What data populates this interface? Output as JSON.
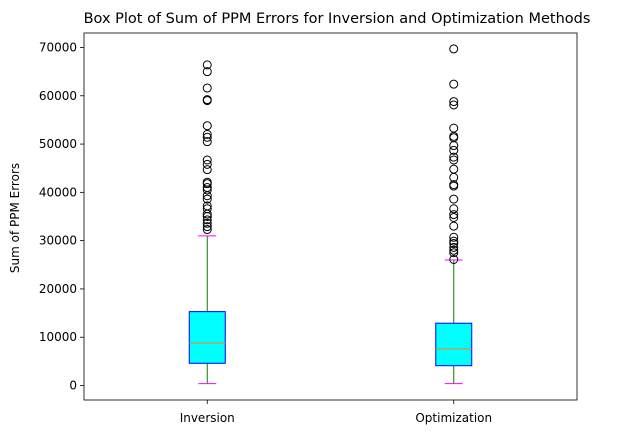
{
  "chart_data": {
    "type": "box",
    "title": "Box Plot of Sum of PPM Errors for Inversion and Optimization Methods",
    "xlabel": "",
    "ylabel": "Sum of PPM Errors",
    "categories": [
      "Inversion",
      "Optimization"
    ],
    "ylim": [
      -3000,
      73000
    ],
    "yticks": [
      0,
      10000,
      20000,
      30000,
      40000,
      50000,
      60000,
      70000
    ],
    "ytick_labels": [
      "0",
      "10000",
      "20000",
      "30000",
      "40000",
      "50000",
      "60000",
      "70000"
    ],
    "grid": false,
    "legend": "none",
    "colors": {
      "box_fill": "#00ffff",
      "box_edge": "#0000ff",
      "median": "#ff7f0e",
      "whisker": "#008000",
      "cap": "#ff00ff",
      "flier": "#000000",
      "axes": "#000000"
    },
    "boxes": [
      {
        "category": "Inversion",
        "whisker_low": 400,
        "q1": 4600,
        "median": 8800,
        "q3": 15300,
        "whisker_high": 31000,
        "outliers": [
          32300,
          32900,
          33600,
          34300,
          35000,
          35500,
          36600,
          37200,
          38600,
          39300,
          40500,
          41000,
          41800,
          42100,
          44700,
          45800,
          46700,
          50500,
          51400,
          52000,
          53800,
          59000,
          59200,
          61600,
          65000,
          66400
        ]
      },
      {
        "category": "Optimization",
        "whisker_low": 400,
        "q1": 4100,
        "median": 7600,
        "q3": 12900,
        "whisker_high": 26000,
        "outliers": [
          26100,
          27500,
          28000,
          28600,
          29400,
          29900,
          30700,
          33000,
          34800,
          35400,
          36600,
          38600,
          41300,
          41600,
          43100,
          44800,
          46700,
          47300,
          48700,
          49700,
          51300,
          51600,
          53300,
          58100,
          58800,
          62400,
          69700
        ]
      }
    ]
  }
}
